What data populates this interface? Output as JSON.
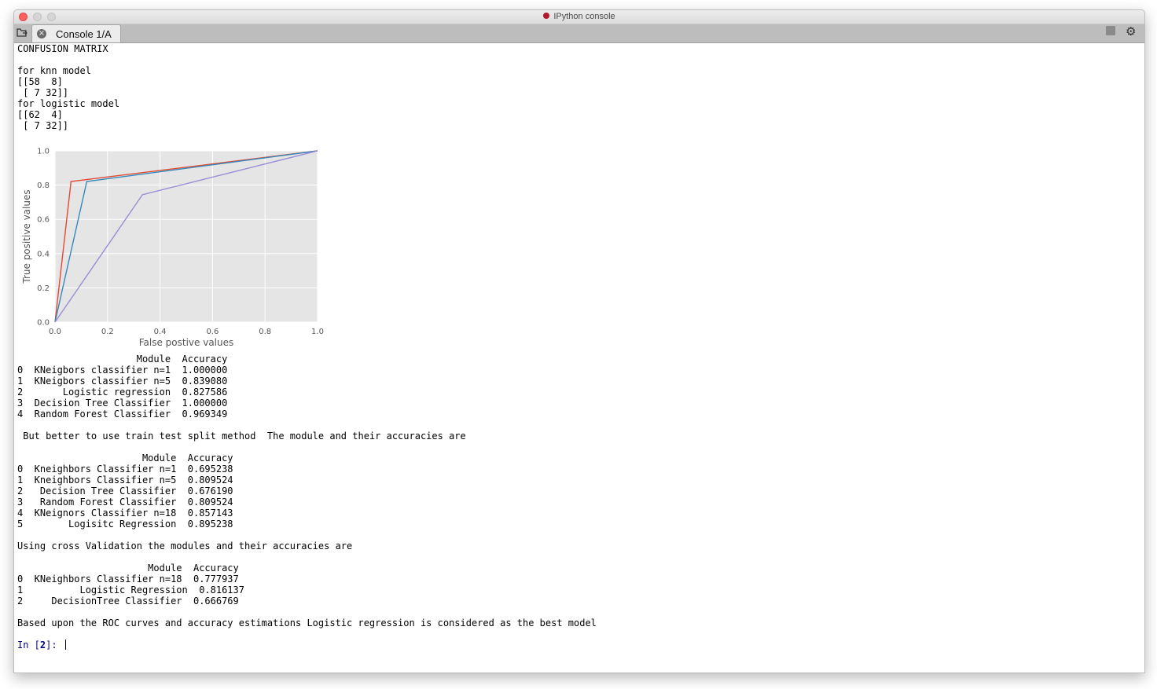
{
  "window": {
    "title": "IPython console",
    "tab_label": "Console 1/A",
    "tab_close_icon": "×",
    "gear_icon": "⚙"
  },
  "output": {
    "block1": [
      "CONFUSION MATRIX",
      "",
      "for knn model",
      "[[58  8]",
      " [ 7 32]]",
      "for logistic model",
      "[[62  4]",
      " [ 7 32]]"
    ],
    "block2": [
      "                     Module  Accuracy",
      "0  KNeigbors classifier n=1  1.000000",
      "1  KNeigbors classifier n=5  0.839080",
      "2       Logistic regression  0.827586",
      "3  Decision Tree Classifier  1.000000",
      "4  Random Forest Classifier  0.969349",
      "",
      " But better to use train test split method  The module and their accuracies are",
      "",
      "                      Module  Accuracy",
      "0  Kneighbors Classifier n=1  0.695238",
      "1  Kneighbors Classifier n=5  0.809524",
      "2   Decision Tree Classifier  0.676190",
      "3   Random Forest Classifier  0.809524",
      "4  KNeignors Classifier n=18  0.857143",
      "5        Logisitc Regression  0.895238",
      "",
      "Using cross Validation the modules and their accuracies are",
      "",
      "                       Module  Accuracy",
      "0  KNeighbors Classifier n=18  0.777937",
      "1          Logistic Regression  0.816137",
      "2     DecisionTree Classifier  0.666769",
      "",
      "Based upon the ROC curves and accuracy estimations Logistic regression is considered as the best model",
      ""
    ],
    "prompt": {
      "label": "In [",
      "number": "2",
      "suffix": "]: "
    }
  },
  "chart_data": {
    "type": "line",
    "title": "",
    "xlabel": "False postive values",
    "ylabel": "True positive values",
    "xlim": [
      0.0,
      1.0
    ],
    "ylim": [
      0.0,
      1.0
    ],
    "xticks": [
      "0.0",
      "0.2",
      "0.4",
      "0.6",
      "0.8",
      "1.0"
    ],
    "yticks": [
      "0.0",
      "0.2",
      "0.4",
      "0.6",
      "0.8",
      "1.0"
    ],
    "grid": true,
    "legend": "none",
    "background": "#e5e5e5",
    "series": [
      {
        "color": "#e24a33",
        "x": [
          0.0,
          0.061,
          1.0
        ],
        "y": [
          0.0,
          0.821,
          1.0
        ]
      },
      {
        "color": "#348abd",
        "x": [
          0.0,
          0.121,
          1.0
        ],
        "y": [
          0.0,
          0.821,
          1.0
        ]
      },
      {
        "color": "#988ed5",
        "x": [
          0.0,
          0.333,
          1.0
        ],
        "y": [
          0.0,
          0.744,
          1.0
        ]
      }
    ]
  }
}
